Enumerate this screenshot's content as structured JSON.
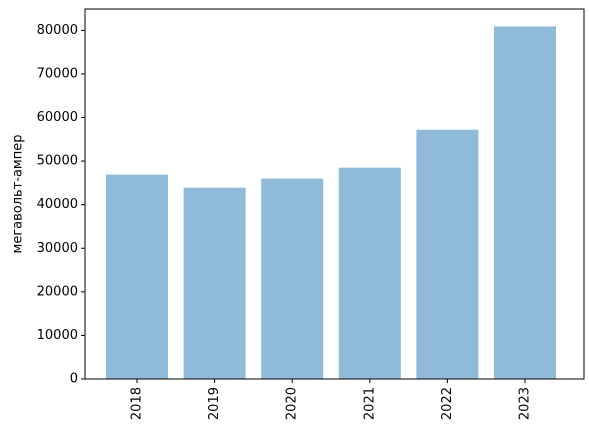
{
  "chart_data": {
    "type": "bar",
    "ylabel": "мегавольт-ампер",
    "categories": [
      "2018",
      "2019",
      "2020",
      "2021",
      "2022",
      "2023"
    ],
    "values": [
      46900,
      43900,
      46000,
      48500,
      57200,
      80900
    ],
    "color": "#8fbbd9",
    "ylim": [
      0,
      84900
    ],
    "yticks": [
      0,
      10000,
      20000,
      30000,
      40000,
      50000,
      60000,
      70000,
      80000
    ]
  }
}
